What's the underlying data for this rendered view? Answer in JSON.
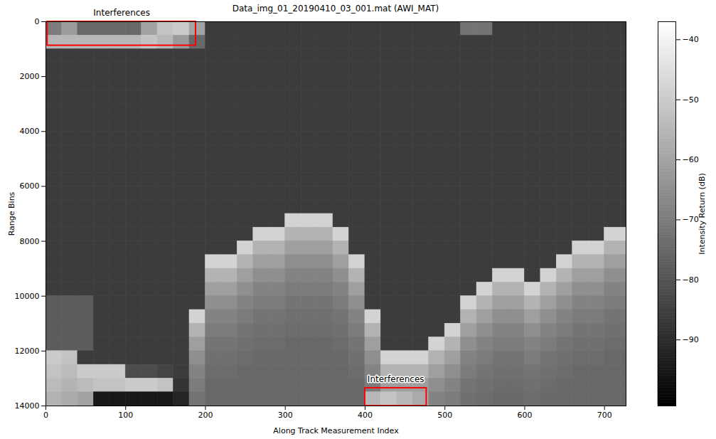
{
  "chart_data": {
    "type": "heatmap",
    "title": "Data_img_01_20190410_03_001.mat (AWI_MAT)",
    "xlabel": "Along Track Measurement Index",
    "ylabel": "Range Bins",
    "xlim": [
      0,
      727
    ],
    "ylim": [
      14000,
      0
    ],
    "xticks": [
      0,
      100,
      200,
      300,
      400,
      500,
      600,
      700
    ],
    "yticks": [
      0,
      2000,
      4000,
      6000,
      8000,
      10000,
      12000,
      14000
    ],
    "color": "gray",
    "colorbar": {
      "label": "Intensity Return (dB)",
      "range": [
        -101,
        -37
      ],
      "ticks": [
        -90,
        -80,
        -70,
        -60,
        -50,
        -40
      ]
    },
    "x_edges": [
      0,
      20,
      40,
      60,
      80,
      100,
      120,
      140,
      160,
      180,
      200,
      220,
      240,
      260,
      280,
      300,
      320,
      340,
      360,
      380,
      400,
      420,
      440,
      460,
      480,
      500,
      520,
      540,
      560,
      580,
      600,
      620,
      640,
      660,
      680,
      700,
      720,
      740
    ],
    "y_edges": [
      0,
      500,
      1000,
      1500,
      2000,
      2500,
      3000,
      3500,
      4000,
      4500,
      5000,
      5500,
      6000,
      6500,
      7000,
      7500,
      8000,
      8500,
      9000,
      9500,
      10000,
      10500,
      11000,
      11500,
      12000,
      12500,
      13000,
      13500,
      14000
    ],
    "cells": [
      [
        -70,
        -62,
        -75,
        -75,
        -75,
        -75,
        -60,
        -52,
        -50,
        -60,
        -86,
        -86,
        -86,
        -86,
        -86,
        -86,
        -86,
        -86,
        -86,
        -86,
        -86,
        -86,
        -86,
        -86,
        -86,
        -86,
        -72,
        -72,
        -86,
        -86,
        -86,
        -86,
        -86,
        -86,
        -86,
        -86,
        -86
      ],
      [
        -55,
        -55,
        -55,
        -55,
        -55,
        -55,
        -52,
        -55,
        -62,
        -75,
        -86,
        -86,
        -86,
        -86,
        -86,
        -86,
        -86,
        -86,
        -86,
        -86,
        -86,
        -86,
        -86,
        -86,
        -86,
        -86,
        -86,
        -86,
        -86,
        -86,
        -86,
        -86,
        -86,
        -86,
        -86,
        -86,
        -86
      ],
      [
        -86,
        -86,
        -86,
        -86,
        -86,
        -86,
        -86,
        -86,
        -86,
        -86,
        -86,
        -86,
        -86,
        -86,
        -86,
        -86,
        -86,
        -86,
        -86,
        -86,
        -86,
        -86,
        -86,
        -86,
        -86,
        -86,
        -86,
        -86,
        -86,
        -86,
        -86,
        -86,
        -86,
        -86,
        -86,
        -86,
        -86
      ],
      [
        -86,
        -86,
        -86,
        -86,
        -86,
        -86,
        -86,
        -86,
        -86,
        -86,
        -86,
        -86,
        -86,
        -86,
        -86,
        -86,
        -86,
        -86,
        -86,
        -86,
        -86,
        -86,
        -86,
        -86,
        -86,
        -86,
        -86,
        -86,
        -86,
        -86,
        -86,
        -86,
        -86,
        -86,
        -86,
        -86,
        -86
      ],
      [
        -86,
        -86,
        -86,
        -86,
        -86,
        -86,
        -86,
        -86,
        -86,
        -86,
        -86,
        -86,
        -86,
        -86,
        -86,
        -86,
        -86,
        -86,
        -86,
        -86,
        -86,
        -86,
        -86,
        -86,
        -86,
        -86,
        -86,
        -86,
        -86,
        -86,
        -86,
        -86,
        -86,
        -86,
        -86,
        -86,
        -86
      ],
      [
        -86,
        -86,
        -86,
        -86,
        -86,
        -86,
        -86,
        -86,
        -86,
        -86,
        -86,
        -86,
        -86,
        -86,
        -86,
        -86,
        -86,
        -86,
        -86,
        -86,
        -86,
        -86,
        -86,
        -86,
        -86,
        -86,
        -86,
        -86,
        -86,
        -86,
        -86,
        -86,
        -86,
        -86,
        -86,
        -86,
        -86
      ],
      [
        -86,
        -86,
        -86,
        -86,
        -86,
        -86,
        -86,
        -86,
        -86,
        -86,
        -86,
        -86,
        -86,
        -86,
        -86,
        -86,
        -86,
        -86,
        -86,
        -86,
        -86,
        -86,
        -86,
        -86,
        -86,
        -86,
        -86,
        -86,
        -86,
        -86,
        -86,
        -86,
        -86,
        -86,
        -86,
        -86,
        -86
      ],
      [
        -86,
        -86,
        -86,
        -86,
        -86,
        -86,
        -86,
        -86,
        -86,
        -86,
        -86,
        -86,
        -86,
        -86,
        -86,
        -86,
        -86,
        -86,
        -86,
        -86,
        -86,
        -86,
        -86,
        -86,
        -86,
        -86,
        -86,
        -86,
        -86,
        -86,
        -86,
        -86,
        -86,
        -86,
        -86,
        -86,
        -86
      ],
      [
        -86,
        -86,
        -86,
        -86,
        -86,
        -86,
        -86,
        -86,
        -86,
        -86,
        -86,
        -86,
        -86,
        -86,
        -86,
        -86,
        -86,
        -86,
        -86,
        -86,
        -86,
        -86,
        -86,
        -86,
        -86,
        -86,
        -86,
        -86,
        -86,
        -86,
        -86,
        -86,
        -86,
        -86,
        -86,
        -86,
        -86
      ],
      [
        -86,
        -86,
        -86,
        -86,
        -86,
        -86,
        -86,
        -86,
        -86,
        -86,
        -86,
        -86,
        -86,
        -86,
        -86,
        -86,
        -86,
        -86,
        -86,
        -86,
        -86,
        -86,
        -86,
        -86,
        -86,
        -86,
        -86,
        -86,
        -86,
        -86,
        -86,
        -86,
        -86,
        -86,
        -86,
        -86,
        -86
      ],
      [
        -86,
        -86,
        -86,
        -86,
        -86,
        -86,
        -86,
        -86,
        -86,
        -86,
        -86,
        -86,
        -86,
        -86,
        -86,
        -86,
        -86,
        -86,
        -86,
        -86,
        -86,
        -86,
        -86,
        -86,
        -86,
        -86,
        -86,
        -86,
        -86,
        -86,
        -86,
        -86,
        -86,
        -86,
        -86,
        -86,
        -86
      ],
      [
        -86,
        -86,
        -86,
        -86,
        -86,
        -86,
        -86,
        -86,
        -86,
        -86,
        -86,
        -86,
        -86,
        -86,
        -86,
        -86,
        -86,
        -86,
        -86,
        -86,
        -86,
        -86,
        -86,
        -86,
        -86,
        -86,
        -86,
        -86,
        -86,
        -86,
        -86,
        -86,
        -86,
        -86,
        -86,
        -86,
        -86
      ],
      [
        -86,
        -86,
        -86,
        -86,
        -86,
        -86,
        -86,
        -86,
        -86,
        -86,
        -86,
        -86,
        -86,
        -86,
        -86,
        -86,
        -86,
        -86,
        -86,
        -86,
        -86,
        -86,
        -86,
        -86,
        -86,
        -86,
        -86,
        -86,
        -86,
        -86,
        -86,
        -86,
        -86,
        -86,
        -86,
        -86,
        -86
      ],
      [
        -86,
        -86,
        -86,
        -86,
        -86,
        -86,
        -86,
        -86,
        -86,
        -86,
        -86,
        -86,
        -86,
        -86,
        -86,
        -86,
        -86,
        -86,
        -86,
        -86,
        -86,
        -86,
        -86,
        -86,
        -86,
        -86,
        -86,
        -86,
        -86,
        -86,
        -86,
        -86,
        -86,
        -86,
        -86,
        -86,
        -86
      ],
      [
        -86,
        -86,
        -86,
        -86,
        -86,
        -86,
        -86,
        -86,
        -86,
        -86,
        -86,
        -86,
        -86,
        -86,
        -86,
        -48,
        -48,
        -48,
        -86,
        -86,
        -86,
        -86,
        -86,
        -86,
        -86,
        -86,
        -86,
        -86,
        -86,
        -86,
        -86,
        -86,
        -86,
        -86,
        -86,
        -86,
        -86
      ],
      [
        -86,
        -86,
        -86,
        -86,
        -86,
        -86,
        -86,
        -86,
        -86,
        -86,
        -86,
        -86,
        -86,
        -48,
        -48,
        -56,
        -56,
        -56,
        -48,
        -86,
        -86,
        -86,
        -86,
        -86,
        -86,
        -86,
        -86,
        -86,
        -86,
        -86,
        -86,
        -86,
        -86,
        -86,
        -86,
        -48,
        -48
      ],
      [
        -86,
        -86,
        -86,
        -86,
        -86,
        -86,
        -86,
        -86,
        -86,
        -86,
        -86,
        -86,
        -48,
        -56,
        -56,
        -61,
        -61,
        -61,
        -56,
        -86,
        -86,
        -86,
        -86,
        -86,
        -86,
        -86,
        -86,
        -86,
        -86,
        -86,
        -86,
        -86,
        -86,
        -48,
        -48,
        -56,
        -56
      ],
      [
        -86,
        -86,
        -86,
        -86,
        -86,
        -86,
        -86,
        -86,
        -86,
        -86,
        -48,
        -48,
        -56,
        -61,
        -61,
        -65,
        -65,
        -65,
        -61,
        -48,
        -86,
        -86,
        -86,
        -86,
        -86,
        -86,
        -86,
        -86,
        -86,
        -86,
        -86,
        -86,
        -48,
        -56,
        -56,
        -61,
        -61
      ],
      [
        -86,
        -86,
        -86,
        -86,
        -86,
        -86,
        -86,
        -86,
        -86,
        -86,
        -56,
        -56,
        -61,
        -65,
        -65,
        -68,
        -68,
        -68,
        -65,
        -56,
        -86,
        -86,
        -86,
        -86,
        -86,
        -86,
        -86,
        -86,
        -48,
        -48,
        -86,
        -48,
        -56,
        -61,
        -61,
        -65,
        -65
      ],
      [
        -86,
        -86,
        -86,
        -86,
        -86,
        -86,
        -86,
        -86,
        -86,
        -86,
        -61,
        -61,
        -65,
        -68,
        -68,
        -70,
        -70,
        -70,
        -68,
        -61,
        -86,
        -86,
        -86,
        -86,
        -86,
        -86,
        -86,
        -48,
        -56,
        -56,
        -48,
        -56,
        -61,
        -65,
        -65,
        -68,
        -68
      ],
      [
        -78,
        -78,
        -78,
        -86,
        -86,
        -86,
        -86,
        -86,
        -86,
        -86,
        -65,
        -65,
        -68,
        -70,
        -70,
        -72,
        -72,
        -72,
        -70,
        -65,
        -86,
        -86,
        -86,
        -86,
        -86,
        -86,
        -48,
        -56,
        -61,
        -61,
        -56,
        -61,
        -65,
        -68,
        -68,
        -70,
        -70
      ],
      [
        -78,
        -78,
        -78,
        -86,
        -86,
        -86,
        -86,
        -86,
        -86,
        -48,
        -68,
        -68,
        -70,
        -72,
        -72,
        -73,
        -73,
        -73,
        -72,
        -68,
        -48,
        -86,
        -86,
        -86,
        -86,
        -86,
        -56,
        -61,
        -65,
        -65,
        -61,
        -65,
        -68,
        -70,
        -70,
        -72,
        -72
      ],
      [
        -78,
        -78,
        -78,
        -86,
        -86,
        -86,
        -86,
        -86,
        -86,
        -56,
        -70,
        -70,
        -72,
        -73,
        -73,
        -74,
        -74,
        -74,
        -73,
        -70,
        -56,
        -86,
        -86,
        -86,
        -86,
        -48,
        -61,
        -65,
        -68,
        -68,
        -65,
        -68,
        -70,
        -72,
        -72,
        -73,
        -73
      ],
      [
        -78,
        -78,
        -78,
        -86,
        -86,
        -86,
        -86,
        -86,
        -86,
        -61,
        -72,
        -72,
        -73,
        -74,
        -74,
        -75,
        -75,
        -75,
        -74,
        -72,
        -61,
        -86,
        -86,
        -86,
        -48,
        -56,
        -65,
        -68,
        -70,
        -70,
        -68,
        -70,
        -72,
        -73,
        -73,
        -74,
        -74
      ],
      [
        -50,
        -52,
        -86,
        -86,
        -86,
        -86,
        -86,
        -86,
        -86,
        -65,
        -73,
        -73,
        -74,
        -75,
        -75,
        -75,
        -75,
        -75,
        -75,
        -73,
        -65,
        -48,
        -48,
        -48,
        -56,
        -61,
        -68,
        -70,
        -72,
        -72,
        -70,
        -72,
        -73,
        -74,
        -74,
        -75,
        -75
      ],
      [
        -52,
        -54,
        -50,
        -50,
        -50,
        -82,
        -82,
        -84,
        -86,
        -68,
        -74,
        -74,
        -75,
        -75,
        -75,
        -75,
        -75,
        -75,
        -75,
        -74,
        -68,
        -56,
        -56,
        -56,
        -61,
        -65,
        -70,
        -72,
        -73,
        -73,
        -72,
        -73,
        -74,
        -75,
        -75,
        -75,
        -75
      ],
      [
        -54,
        -56,
        -54,
        -52,
        -52,
        -50,
        -50,
        -52,
        -88,
        -70,
        -75,
        -75,
        -75,
        -75,
        -75,
        -75,
        -75,
        -75,
        -75,
        -75,
        -70,
        -61,
        -61,
        -61,
        -65,
        -68,
        -72,
        -73,
        -74,
        -74,
        -73,
        -74,
        -75,
        -75,
        -75,
        -75,
        -75
      ],
      [
        -56,
        -58,
        -60,
        -95,
        -95,
        -95,
        -95,
        -95,
        -92,
        -72,
        -75,
        -75,
        -75,
        -75,
        -75,
        -75,
        -75,
        -75,
        -75,
        -75,
        -55,
        -52,
        -55,
        -58,
        -68,
        -70,
        -73,
        -74,
        -75,
        -75,
        -74,
        -75,
        -75,
        -75,
        -75,
        -75,
        -75
      ]
    ],
    "annotations": [
      {
        "text": "Interferences",
        "x": [
          2,
          188
        ],
        "y": [
          0,
          870
        ]
      },
      {
        "text": "Interferences",
        "x": [
          400,
          477
        ],
        "y": [
          13350,
          14000
        ]
      }
    ]
  }
}
